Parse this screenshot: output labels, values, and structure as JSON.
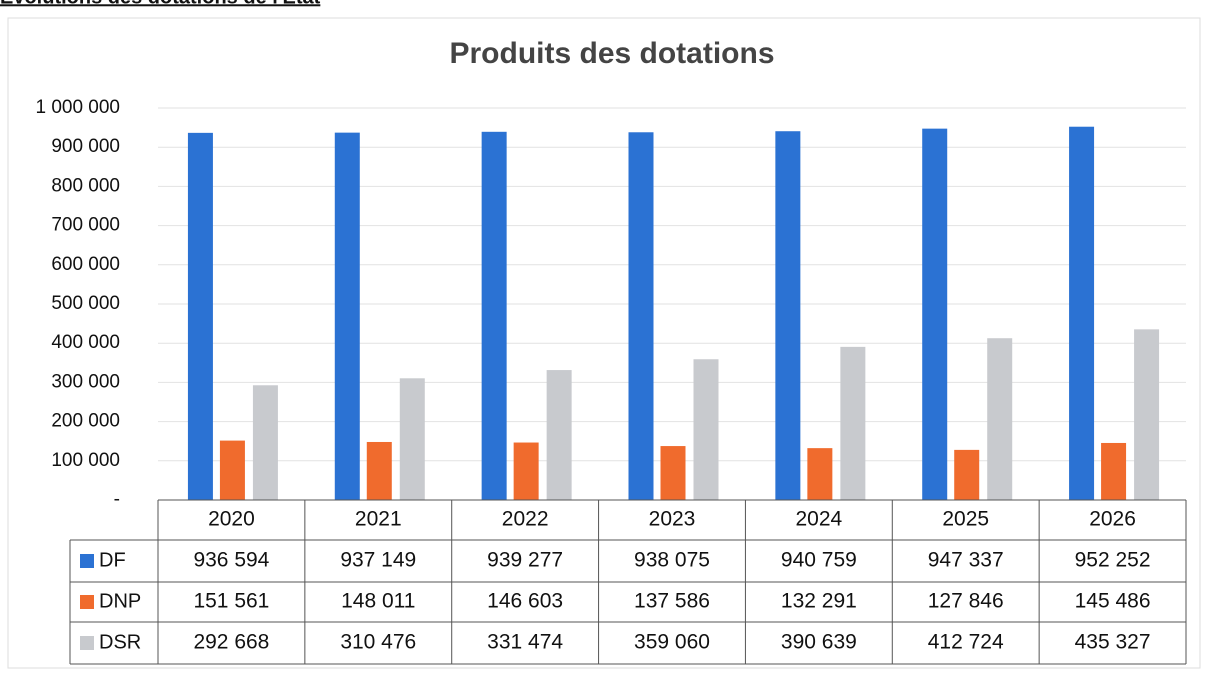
{
  "heading": "Evolutions des dotations de l'Etat",
  "chart_data": {
    "type": "bar",
    "title": "Produits des dotations",
    "categories": [
      "2020",
      "2021",
      "2022",
      "2023",
      "2024",
      "2025",
      "2026"
    ],
    "series": [
      {
        "name": "DF",
        "color": "#2b72d3",
        "values": [
          936594,
          937149,
          939277,
          938075,
          940759,
          947337,
          952252
        ],
        "value_labels": [
          "936 594",
          "937 149",
          "939 277",
          "938 075",
          "940 759",
          "947 337",
          "952 252"
        ]
      },
      {
        "name": "DNP",
        "color": "#f06b2d",
        "values": [
          151561,
          148011,
          146603,
          137586,
          132291,
          127846,
          145486
        ],
        "value_labels": [
          "151 561",
          "148 011",
          "146 603",
          "137 586",
          "132 291",
          "127 846",
          "145 486"
        ]
      },
      {
        "name": "DSR",
        "color": "#c8cace",
        "values": [
          292668,
          310476,
          331474,
          359060,
          390639,
          412724,
          435327
        ],
        "value_labels": [
          "292 668",
          "310 476",
          "331 474",
          "359 060",
          "390 639",
          "412 724",
          "435 327"
        ]
      }
    ],
    "ylim": [
      0,
      1000000
    ],
    "yticks": [
      {
        "value": 0,
        "label": "-"
      },
      {
        "value": 100000,
        "label": "100 000"
      },
      {
        "value": 200000,
        "label": "200 000"
      },
      {
        "value": 300000,
        "label": "300 000"
      },
      {
        "value": 400000,
        "label": "400 000"
      },
      {
        "value": 500000,
        "label": "500 000"
      },
      {
        "value": 600000,
        "label": "600 000"
      },
      {
        "value": 700000,
        "label": "700 000"
      },
      {
        "value": 800000,
        "label": "800 000"
      },
      {
        "value": 900000,
        "label": "900 000"
      },
      {
        "value": 1000000,
        "label": "1 000 000"
      }
    ],
    "grid": true
  }
}
